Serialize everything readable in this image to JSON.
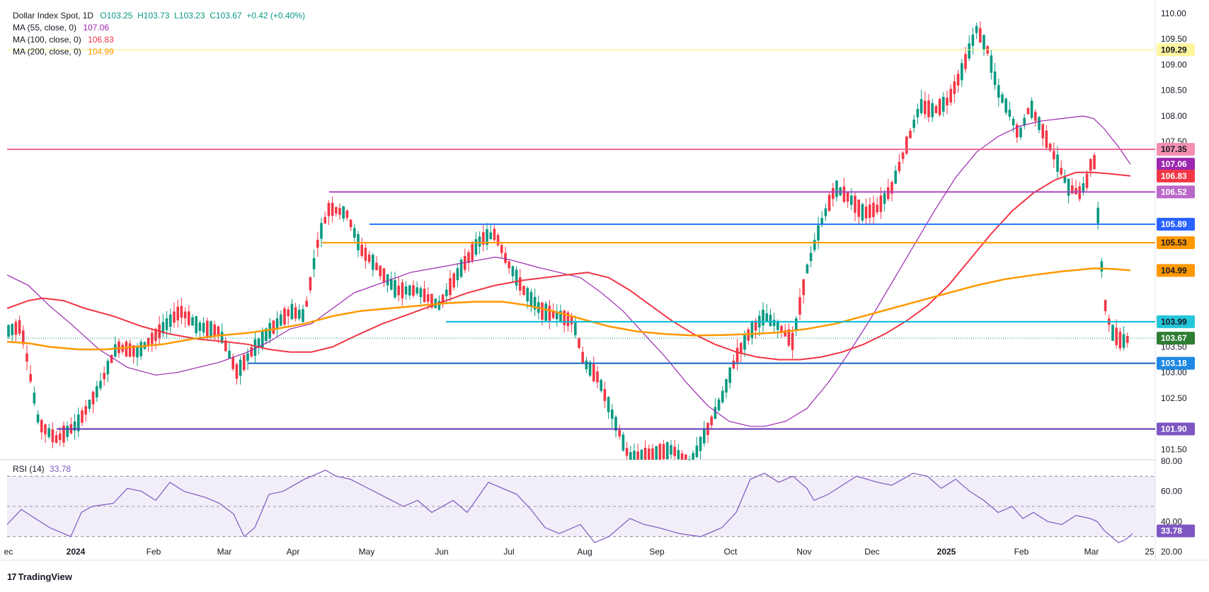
{
  "legend": {
    "symbol": "Dollar Index Spot, 1D",
    "ohlc": "O103.25  H103.73  L103.23  C103.67  +0.42 (+0.40%)",
    "ohlc_color": "#089981",
    "ma55_label": "MA (55, close, 0)",
    "ma55_value": "107.06",
    "ma100_label": "MA (100, close, 0)",
    "ma100_value": "106.83",
    "ma200_label": "MA (200, close, 0)",
    "ma200_value": "104.99"
  },
  "rsi_legend": {
    "label": "RSI (14)",
    "value": "33.78"
  },
  "brand": {
    "logo": "17",
    "name": "TradingView"
  },
  "chart_data": {
    "type": "candlestick",
    "y_axis_ticks": [
      "110.00",
      "109.50",
      "109.00",
      "108.50",
      "108.00",
      "107.50",
      "103.50",
      "103.00",
      "102.50",
      "101.50"
    ],
    "ylim": [
      101.3,
      110.15
    ],
    "x_axis_labels": [
      "ec",
      "2024",
      "Feb",
      "Mar",
      "Apr",
      "May",
      "Jun",
      "Jul",
      "Aug",
      "Sep",
      "Oct",
      "Nov",
      "Dec",
      "2025",
      "Feb",
      "Mar",
      "25"
    ],
    "x_axis_positions": [
      12,
      107,
      217,
      317,
      414,
      518,
      624,
      719,
      826,
      928,
      1032,
      1136,
      1232,
      1337,
      1443,
      1542,
      1624
    ],
    "current_price": 103.67,
    "horizontal_levels": [
      {
        "value": 109.29,
        "label": "109.29",
        "color": "#f5f07a",
        "label_bg": "#fff59d",
        "label_fg": "#131722",
        "x_start": 0,
        "width": 1
      },
      {
        "value": 107.35,
        "label": "107.35",
        "color": "#f06292",
        "label_bg": "#f48fb1",
        "label_fg": "#131722",
        "x_start": 0,
        "width": 2
      },
      {
        "value": 106.52,
        "label": "106.52",
        "color": "#ab47bc",
        "label_bg": "#ba68c8",
        "label_fg": "#ffffff",
        "x_start": 465,
        "width": 2
      },
      {
        "value": 105.89,
        "label": "105.89",
        "color": "#2979ff",
        "label_bg": "#2962ff",
        "label_fg": "#ffffff",
        "x_start": 522,
        "width": 2
      },
      {
        "value": 105.53,
        "label": "105.53",
        "color": "#ff9800",
        "label_bg": "#ff9800",
        "label_fg": "#131722",
        "x_start": 455,
        "width": 2
      },
      {
        "value": 103.99,
        "label": "103.99",
        "color": "#00bcd4",
        "label_bg": "#26c6da",
        "label_fg": "#131722",
        "x_start": 630,
        "width": 2
      },
      {
        "value": 103.18,
        "label": "103.18",
        "color": "#1565c0",
        "label_bg": "#1e88e5",
        "label_fg": "#ffffff",
        "x_start": 350,
        "width": 2
      },
      {
        "value": 101.9,
        "label": "101.90",
        "color": "#5e35b1",
        "label_bg": "#7e57c2",
        "label_fg": "#ffffff",
        "x_start": 80,
        "width": 2
      }
    ],
    "axis_badges": [
      {
        "value": 107.06,
        "label": "107.06",
        "bg": "#9c27b0",
        "fg": "#ffffff"
      },
      {
        "value": 106.83,
        "label": "106.83",
        "bg": "#f23645",
        "fg": "#ffffff"
      },
      {
        "value": 104.99,
        "label": "104.99",
        "bg": "#ff9800",
        "fg": "#131722"
      },
      {
        "value": 103.67,
        "label": "103.67",
        "bg": "#2e7d32",
        "fg": "#ffffff"
      }
    ],
    "ma_series": [
      {
        "name": "MA (55, close, 0)",
        "color": "#9c27b0",
        "width": 1.2,
        "points": [
          [
            10,
            104.9
          ],
          [
            40,
            104.7
          ],
          [
            70,
            104.3
          ],
          [
            100,
            103.95
          ],
          [
            140,
            103.45
          ],
          [
            180,
            103.1
          ],
          [
            220,
            102.95
          ],
          [
            250,
            103.0
          ],
          [
            280,
            103.1
          ],
          [
            310,
            103.2
          ],
          [
            350,
            103.4
          ],
          [
            380,
            103.6
          ],
          [
            410,
            103.85
          ],
          [
            440,
            103.95
          ],
          [
            470,
            104.25
          ],
          [
            500,
            104.55
          ],
          [
            540,
            104.75
          ],
          [
            580,
            104.95
          ],
          [
            620,
            105.05
          ],
          [
            660,
            105.15
          ],
          [
            700,
            105.25
          ],
          [
            720,
            105.2
          ],
          [
            760,
            105.05
          ],
          [
            790,
            104.95
          ],
          [
            820,
            104.85
          ],
          [
            850,
            104.55
          ],
          [
            880,
            104.2
          ],
          [
            910,
            103.75
          ],
          [
            940,
            103.3
          ],
          [
            970,
            102.8
          ],
          [
            1000,
            102.35
          ],
          [
            1030,
            102.05
          ],
          [
            1060,
            101.95
          ],
          [
            1080,
            101.95
          ],
          [
            1110,
            102.05
          ],
          [
            1140,
            102.3
          ],
          [
            1170,
            102.8
          ],
          [
            1200,
            103.4
          ],
          [
            1230,
            104.05
          ],
          [
            1260,
            104.75
          ],
          [
            1290,
            105.45
          ],
          [
            1320,
            106.15
          ],
          [
            1350,
            106.8
          ],
          [
            1380,
            107.3
          ],
          [
            1410,
            107.6
          ],
          [
            1440,
            107.8
          ],
          [
            1470,
            107.9
          ],
          [
            1500,
            107.95
          ],
          [
            1530,
            108.0
          ],
          [
            1545,
            107.95
          ],
          [
            1560,
            107.75
          ],
          [
            1580,
            107.4
          ],
          [
            1597,
            107.06
          ]
        ]
      },
      {
        "name": "MA (100, close, 0)",
        "color": "#f23645",
        "width": 2,
        "points": [
          [
            10,
            104.25
          ],
          [
            40,
            104.4
          ],
          [
            60,
            104.45
          ],
          [
            90,
            104.4
          ],
          [
            120,
            104.25
          ],
          [
            160,
            104.1
          ],
          [
            200,
            103.9
          ],
          [
            240,
            103.75
          ],
          [
            280,
            103.65
          ],
          [
            320,
            103.6
          ],
          [
            350,
            103.55
          ],
          [
            380,
            103.45
          ],
          [
            410,
            103.4
          ],
          [
            440,
            103.4
          ],
          [
            470,
            103.5
          ],
          [
            500,
            103.7
          ],
          [
            540,
            103.95
          ],
          [
            580,
            104.15
          ],
          [
            620,
            104.35
          ],
          [
            660,
            104.55
          ],
          [
            700,
            104.7
          ],
          [
            740,
            104.8
          ],
          [
            770,
            104.85
          ],
          [
            800,
            104.9
          ],
          [
            830,
            104.95
          ],
          [
            860,
            104.85
          ],
          [
            890,
            104.6
          ],
          [
            920,
            104.3
          ],
          [
            950,
            104.0
          ],
          [
            980,
            103.75
          ],
          [
            1010,
            103.55
          ],
          [
            1040,
            103.4
          ],
          [
            1070,
            103.3
          ],
          [
            1100,
            103.25
          ],
          [
            1130,
            103.25
          ],
          [
            1160,
            103.3
          ],
          [
            1190,
            103.4
          ],
          [
            1220,
            103.55
          ],
          [
            1250,
            103.75
          ],
          [
            1280,
            104.0
          ],
          [
            1310,
            104.3
          ],
          [
            1340,
            104.7
          ],
          [
            1370,
            105.2
          ],
          [
            1400,
            105.7
          ],
          [
            1430,
            106.15
          ],
          [
            1460,
            106.5
          ],
          [
            1490,
            106.75
          ],
          [
            1520,
            106.9
          ],
          [
            1545,
            106.9
          ],
          [
            1570,
            106.87
          ],
          [
            1597,
            106.83
          ]
        ]
      },
      {
        "name": "MA (200, close, 0)",
        "color": "#ff9800",
        "width": 2.5,
        "points": [
          [
            10,
            103.6
          ],
          [
            40,
            103.57
          ],
          [
            70,
            103.5
          ],
          [
            110,
            103.45
          ],
          [
            150,
            103.45
          ],
          [
            190,
            103.5
          ],
          [
            230,
            103.55
          ],
          [
            270,
            103.65
          ],
          [
            310,
            103.72
          ],
          [
            350,
            103.77
          ],
          [
            390,
            103.85
          ],
          [
            430,
            103.95
          ],
          [
            470,
            104.1
          ],
          [
            510,
            104.2
          ],
          [
            550,
            104.25
          ],
          [
            590,
            104.3
          ],
          [
            630,
            104.35
          ],
          [
            670,
            104.38
          ],
          [
            710,
            104.38
          ],
          [
            740,
            104.32
          ],
          [
            780,
            104.2
          ],
          [
            820,
            104.05
          ],
          [
            860,
            103.9
          ],
          [
            900,
            103.8
          ],
          [
            940,
            103.75
          ],
          [
            980,
            103.72
          ],
          [
            1020,
            103.73
          ],
          [
            1060,
            103.75
          ],
          [
            1100,
            103.78
          ],
          [
            1140,
            103.85
          ],
          [
            1180,
            103.95
          ],
          [
            1220,
            104.1
          ],
          [
            1260,
            104.25
          ],
          [
            1300,
            104.4
          ],
          [
            1340,
            104.55
          ],
          [
            1380,
            104.7
          ],
          [
            1420,
            104.82
          ],
          [
            1460,
            104.9
          ],
          [
            1500,
            104.97
          ],
          [
            1545,
            105.03
          ],
          [
            1570,
            105.02
          ],
          [
            1597,
            104.99
          ]
        ]
      }
    ],
    "rsi": {
      "name": "RSI (14)",
      "ylim": [
        20,
        80
      ],
      "ticks": [
        "80.00",
        "60.00",
        "40.00",
        "20.00"
      ],
      "band_upper": 70,
      "band_mid": 50,
      "band_lower": 30,
      "current": 33.78,
      "points": [
        [
          10,
          38
        ],
        [
          30,
          48
        ],
        [
          50,
          42
        ],
        [
          70,
          36
        ],
        [
          90,
          32
        ],
        [
          100,
          30
        ],
        [
          115,
          46
        ],
        [
          130,
          50
        ],
        [
          160,
          52
        ],
        [
          180,
          62
        ],
        [
          200,
          60
        ],
        [
          220,
          54
        ],
        [
          240,
          66
        ],
        [
          260,
          60
        ],
        [
          290,
          56
        ],
        [
          310,
          52
        ],
        [
          330,
          45
        ],
        [
          345,
          30
        ],
        [
          360,
          36
        ],
        [
          380,
          58
        ],
        [
          400,
          60
        ],
        [
          430,
          68
        ],
        [
          460,
          74
        ],
        [
          475,
          70
        ],
        [
          495,
          68
        ],
        [
          520,
          62
        ],
        [
          545,
          56
        ],
        [
          570,
          50
        ],
        [
          590,
          54
        ],
        [
          610,
          46
        ],
        [
          640,
          54
        ],
        [
          660,
          46
        ],
        [
          690,
          66
        ],
        [
          710,
          62
        ],
        [
          730,
          58
        ],
        [
          750,
          48
        ],
        [
          770,
          36
        ],
        [
          790,
          32
        ],
        [
          820,
          38
        ],
        [
          840,
          26
        ],
        [
          860,
          30
        ],
        [
          890,
          42
        ],
        [
          910,
          38
        ],
        [
          930,
          36
        ],
        [
          960,
          32
        ],
        [
          990,
          30
        ],
        [
          1020,
          36
        ],
        [
          1040,
          46
        ],
        [
          1060,
          68
        ],
        [
          1080,
          72
        ],
        [
          1100,
          66
        ],
        [
          1120,
          70
        ],
        [
          1140,
          62
        ],
        [
          1150,
          54
        ],
        [
          1170,
          58
        ],
        [
          1190,
          64
        ],
        [
          1210,
          70
        ],
        [
          1240,
          66
        ],
        [
          1260,
          64
        ],
        [
          1290,
          72
        ],
        [
          1310,
          70
        ],
        [
          1330,
          62
        ],
        [
          1350,
          68
        ],
        [
          1370,
          60
        ],
        [
          1390,
          54
        ],
        [
          1410,
          46
        ],
        [
          1430,
          50
        ],
        [
          1445,
          42
        ],
        [
          1460,
          46
        ],
        [
          1480,
          40
        ],
        [
          1500,
          38
        ],
        [
          1520,
          44
        ],
        [
          1540,
          42
        ],
        [
          1550,
          40
        ],
        [
          1560,
          34
        ],
        [
          1570,
          30
        ],
        [
          1580,
          26
        ],
        [
          1590,
          28
        ],
        [
          1600,
          32
        ]
      ]
    }
  }
}
